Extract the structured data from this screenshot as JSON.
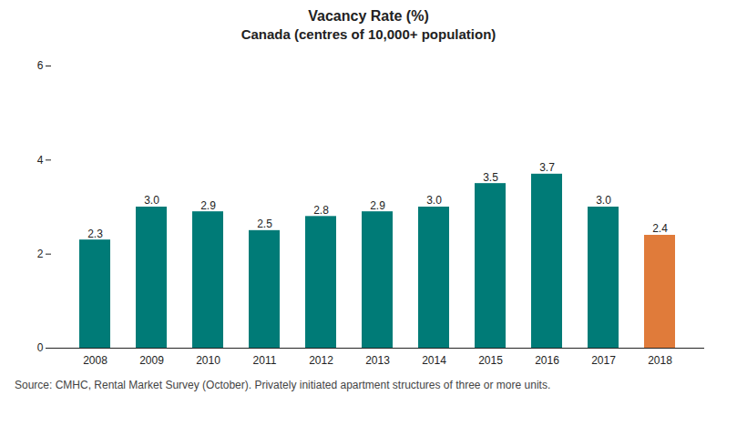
{
  "chart_data": {
    "type": "bar",
    "title": "Vacancy Rate (%)",
    "subtitle": "Canada (centres of 10,000+ population)",
    "caption": "Source: CMHC, Rental Market Survey (October). Privately initiated apartment structures of three or more units.",
    "categories": [
      "2008",
      "2009",
      "2010",
      "2011",
      "2012",
      "2013",
      "2014",
      "2015",
      "2016",
      "2017",
      "2018"
    ],
    "values": [
      2.3,
      3.0,
      2.9,
      2.5,
      2.8,
      2.9,
      3.0,
      3.5,
      3.7,
      3.0,
      2.4
    ],
    "value_labels": [
      "2.3",
      "3.0",
      "2.9",
      "2.5",
      "2.8",
      "2.9",
      "3.0",
      "3.5",
      "3.7",
      "3.0",
      "2.4"
    ],
    "colors": [
      "#007b77",
      "#007b77",
      "#007b77",
      "#007b77",
      "#007b77",
      "#007b77",
      "#007b77",
      "#007b77",
      "#007b77",
      "#007b77",
      "#e07b3a"
    ],
    "ylim": [
      0,
      6
    ],
    "yticks": [
      0,
      2,
      4,
      6
    ],
    "grid": false,
    "data_labels": true
  }
}
